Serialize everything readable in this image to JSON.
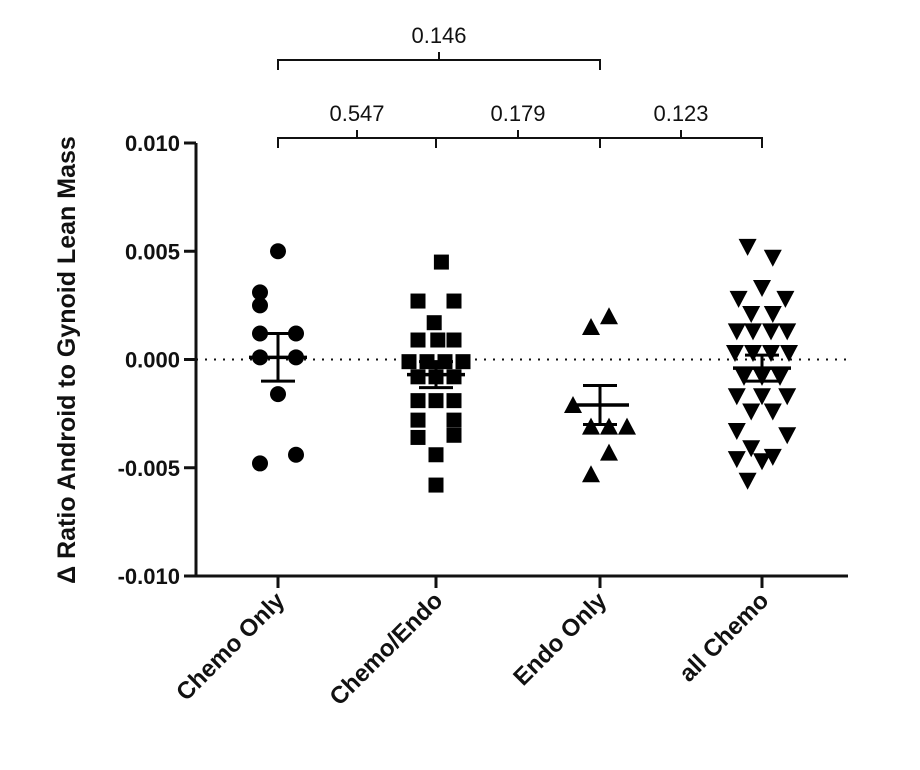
{
  "chart_data": {
    "type": "scatter",
    "title": "",
    "ylabel": "Δ Ratio Android to Gynoid Lean Mass",
    "xlabel": "",
    "ylim": [
      -0.01,
      0.01
    ],
    "yticks": [
      0.01,
      0.005,
      0.0,
      -0.005,
      -0.01
    ],
    "ytick_labels": [
      "0.010",
      "0.005",
      "0.000",
      "-0.005",
      "-0.010"
    ],
    "zero_line": "dotted",
    "grid": false,
    "legend": "none",
    "categories": [
      "Chemo Only",
      "Chemo/Endo",
      "Endo Only",
      "all Chemo"
    ],
    "series": [
      {
        "category": "Chemo Only",
        "marker": "circle",
        "mean": 0.0001,
        "sem_upper": 0.0012,
        "sem_lower": -0.001,
        "points": [
          {
            "dx": 0,
            "y": 0.005
          },
          {
            "dx": -1,
            "y": 0.0031
          },
          {
            "dx": -1,
            "y": 0.0025
          },
          {
            "dx": -1,
            "y": 0.0012
          },
          {
            "dx": 1,
            "y": 0.0012
          },
          {
            "dx": -1,
            "y": 0.0001
          },
          {
            "dx": 1,
            "y": 0.0001
          },
          {
            "dx": 0,
            "y": -0.0016
          },
          {
            "dx": -1,
            "y": -0.0048
          },
          {
            "dx": 1,
            "y": -0.0044
          }
        ]
      },
      {
        "category": "Chemo/Endo",
        "marker": "square",
        "mean": -0.0007,
        "sem_upper": -0.0001,
        "sem_lower": -0.0013,
        "points": [
          {
            "dx": 0.3,
            "y": 0.0045
          },
          {
            "dx": -1,
            "y": 0.0027
          },
          {
            "dx": 1,
            "y": 0.0027
          },
          {
            "dx": -0.1,
            "y": 0.0017
          },
          {
            "dx": -1,
            "y": 0.0009
          },
          {
            "dx": 0.1,
            "y": 0.0009
          },
          {
            "dx": 1,
            "y": 0.0009
          },
          {
            "dx": -1.5,
            "y": -0.0001
          },
          {
            "dx": -0.5,
            "y": -0.0001
          },
          {
            "dx": 0.5,
            "y": -0.0001
          },
          {
            "dx": 1.5,
            "y": -0.0001
          },
          {
            "dx": -1,
            "y": -0.0008
          },
          {
            "dx": 0,
            "y": -0.0008
          },
          {
            "dx": 1,
            "y": -0.0008
          },
          {
            "dx": -1,
            "y": -0.0019
          },
          {
            "dx": 0,
            "y": -0.0019
          },
          {
            "dx": 1,
            "y": -0.0019
          },
          {
            "dx": -1,
            "y": -0.0028
          },
          {
            "dx": 1,
            "y": -0.0028
          },
          {
            "dx": -1,
            "y": -0.0036
          },
          {
            "dx": 1,
            "y": -0.0035
          },
          {
            "dx": 0,
            "y": -0.0044
          },
          {
            "dx": 0,
            "y": -0.0058
          }
        ]
      },
      {
        "category": "Endo Only",
        "marker": "triangle-up",
        "mean": -0.0021,
        "sem_upper": -0.0012,
        "sem_lower": -0.003,
        "points": [
          {
            "dx": -0.5,
            "y": 0.0015
          },
          {
            "dx": 0.5,
            "y": 0.002
          },
          {
            "dx": -1.5,
            "y": -0.0021
          },
          {
            "dx": -0.5,
            "y": -0.0031
          },
          {
            "dx": 0.5,
            "y": -0.0031
          },
          {
            "dx": 1.5,
            "y": -0.0031
          },
          {
            "dx": 0.5,
            "y": -0.0043
          },
          {
            "dx": -0.5,
            "y": -0.0053
          }
        ]
      },
      {
        "category": "all Chemo",
        "marker": "triangle-down",
        "mean": -0.0004,
        "sem_upper": 0.0002,
        "sem_lower": -0.001,
        "points": [
          {
            "dx": -0.8,
            "y": 0.0052
          },
          {
            "dx": 0.6,
            "y": 0.0047
          },
          {
            "dx": 0,
            "y": 0.0033
          },
          {
            "dx": -1.3,
            "y": 0.0028
          },
          {
            "dx": 1.3,
            "y": 0.0028
          },
          {
            "dx": -0.6,
            "y": 0.0021
          },
          {
            "dx": 0.6,
            "y": 0.0021
          },
          {
            "dx": -1.4,
            "y": 0.0013
          },
          {
            "dx": -0.5,
            "y": 0.0013
          },
          {
            "dx": 0.5,
            "y": 0.0013
          },
          {
            "dx": 1.4,
            "y": 0.0013
          },
          {
            "dx": -1.5,
            "y": 0.0003
          },
          {
            "dx": -0.5,
            "y": 0.0003
          },
          {
            "dx": 0.5,
            "y": 0.0003
          },
          {
            "dx": 1.5,
            "y": 0.0003
          },
          {
            "dx": -1,
            "y": -0.0008
          },
          {
            "dx": 0,
            "y": -0.0008
          },
          {
            "dx": 1,
            "y": -0.0008
          },
          {
            "dx": -1.4,
            "y": -0.0017
          },
          {
            "dx": 0,
            "y": -0.0017
          },
          {
            "dx": 1.4,
            "y": -0.0017
          },
          {
            "dx": -0.6,
            "y": -0.0024
          },
          {
            "dx": 0.6,
            "y": -0.0024
          },
          {
            "dx": -1.4,
            "y": -0.0033
          },
          {
            "dx": 1.4,
            "y": -0.0035
          },
          {
            "dx": -0.6,
            "y": -0.0041
          },
          {
            "dx": 0.6,
            "y": -0.0045
          },
          {
            "dx": -1.4,
            "y": -0.0046
          },
          {
            "dx": 0,
            "y": -0.0047
          },
          {
            "dx": -0.8,
            "y": -0.0056
          }
        ]
      }
    ],
    "comparisons": [
      {
        "from": 0,
        "to": 2,
        "level": 2,
        "label": "0.146"
      },
      {
        "from": 0,
        "to": 1,
        "level": 1,
        "label": "0.547"
      },
      {
        "from": 1,
        "to": 2,
        "level": 1,
        "label": "0.179"
      },
      {
        "from": 2,
        "to": 3,
        "level": 1,
        "label": "0.123"
      }
    ]
  }
}
